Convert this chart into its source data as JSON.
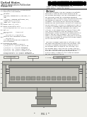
{
  "page_color": "#ffffff",
  "barcode_color": "#000000",
  "wall_fill": "#b8b8b0",
  "inner_fill": "#d8d7d0",
  "cathode_fill": "#a0a098",
  "cathode_body_fill": "#c8c7c0",
  "stem_fill": "#989890",
  "label_box_fill": "#e8e7e0",
  "diagram_bg": "#efefea",
  "text_color": "#222222",
  "line_color": "#444444",
  "header_separator": "#999999"
}
